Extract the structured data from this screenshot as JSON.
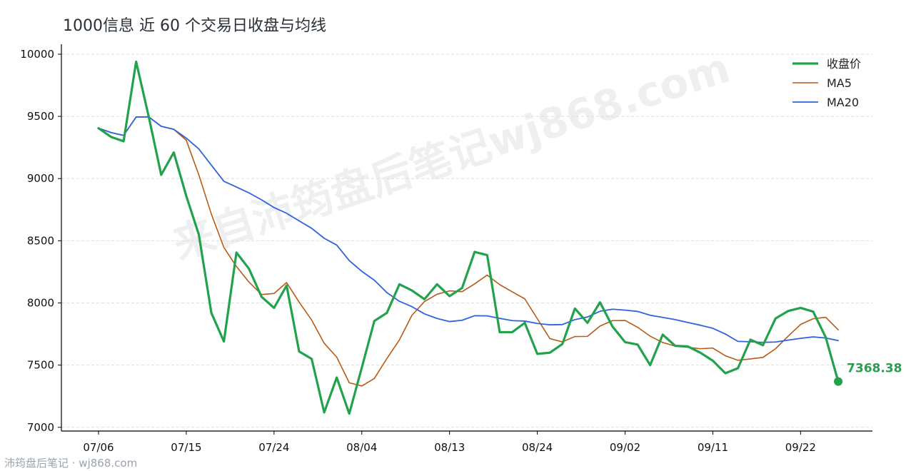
{
  "title": "1000信息 近 60 个交易日收盘与均线",
  "watermark": "来自沛筠盘后笔记wj868.com",
  "footer": "沛筠盘后笔记 · wj868.com",
  "colors": {
    "close": "#22a24a",
    "ma5": "#b85a14",
    "ma20": "#2e63dc",
    "grid": "#dddddd",
    "axis": "#000000"
  },
  "chart_data": {
    "type": "line",
    "title": "1000信息 近 60 个交易日收盘与均线",
    "xlabel": "",
    "ylabel": "",
    "ylim": [
      6970,
      10080
    ],
    "yticks": [
      7000,
      7500,
      8000,
      8500,
      9000,
      9500,
      10000
    ],
    "x_tick_labels": [
      {
        "index": 0,
        "label": "07/06"
      },
      {
        "index": 7,
        "label": "07/15"
      },
      {
        "index": 14,
        "label": "07/24"
      },
      {
        "index": 21,
        "label": "08/04"
      },
      {
        "index": 28,
        "label": "08/13"
      },
      {
        "index": 35,
        "label": "08/24"
      },
      {
        "index": 42,
        "label": "09/02"
      },
      {
        "index": 49,
        "label": "09/11"
      },
      {
        "index": 56,
        "label": "09/22"
      }
    ],
    "grid": true,
    "legend": "top-right",
    "end_label": "7368.38",
    "series": [
      {
        "name": "收盘价",
        "values": [
          9405,
          9335,
          9300,
          9940,
          9500,
          9030,
          9210,
          8860,
          8550,
          7920,
          7690,
          8405,
          8275,
          8050,
          7960,
          8140,
          7610,
          7550,
          7120,
          7400,
          7110,
          7480,
          7855,
          7920,
          8150,
          8100,
          8030,
          8150,
          8055,
          8120,
          8410,
          8385,
          7765,
          7765,
          7840,
          7590,
          7600,
          7670,
          7955,
          7840,
          8005,
          7810,
          7685,
          7665,
          7500,
          7745,
          7655,
          7650,
          7600,
          7535,
          7435,
          7475,
          7705,
          7660,
          7875,
          7935,
          7960,
          7930,
          7725,
          7368.38
        ]
      },
      {
        "name": "MA5",
        "values": [
          9405,
          9370,
          9347,
          9495,
          9496,
          9420,
          9396,
          9308,
          9030,
          8714,
          8446,
          8293,
          8168,
          8068,
          8076,
          8164,
          8007,
          7862,
          7676,
          7564,
          7358,
          7332,
          7393,
          7553,
          7703,
          7901,
          8011,
          8070,
          8097,
          8091,
          8153,
          8224,
          8147,
          8089,
          8033,
          7873,
          7713,
          7687,
          7730,
          7731,
          7814,
          7858,
          7859,
          7804,
          7733,
          7682,
          7652,
          7643,
          7632,
          7637,
          7575,
          7539,
          7550,
          7562,
          7632,
          7732,
          7827,
          7873,
          7885,
          7784
        ]
      },
      {
        "name": "MA20",
        "values": [
          9405,
          9370,
          9347,
          9495,
          9496,
          9420,
          9396,
          9325,
          9238,
          9108,
          8978,
          8932,
          8885,
          8829,
          8767,
          8721,
          8660,
          8600,
          8520,
          8465,
          8340,
          8254,
          8183,
          8083,
          8013,
          7970,
          7912,
          7875,
          7850,
          7861,
          7897,
          7896,
          7876,
          7858,
          7854,
          7835,
          7824,
          7826,
          7866,
          7887,
          7933,
          7950,
          7942,
          7932,
          7901,
          7884,
          7866,
          7843,
          7821,
          7796,
          7750,
          7691,
          7688,
          7683,
          7686,
          7701,
          7715,
          7727,
          7718,
          7697
        ]
      }
    ]
  }
}
